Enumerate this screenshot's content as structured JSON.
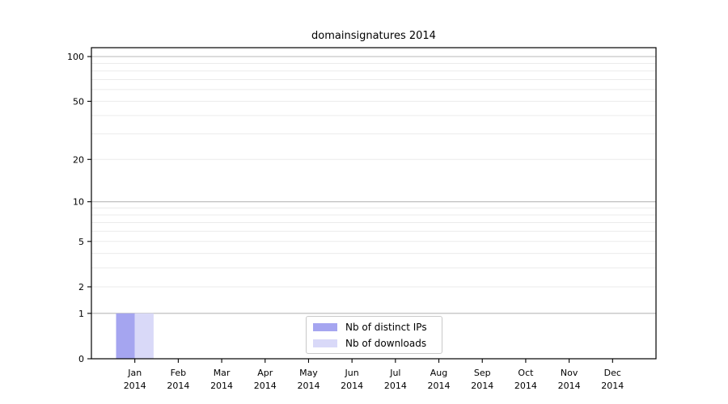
{
  "title": "domainsignatures 2014",
  "chart_data": {
    "type": "bar",
    "title": "domainsignatures 2014",
    "categories": [
      "Jan",
      "Feb",
      "Mar",
      "Apr",
      "May",
      "Jun",
      "Jul",
      "Aug",
      "Sep",
      "Oct",
      "Nov",
      "Dec"
    ],
    "category_sublabel": "2014",
    "series": [
      {
        "name": "Nb of distinct IPs",
        "color": "#a5a5f0",
        "values": [
          1,
          0,
          0,
          0,
          0,
          0,
          0,
          0,
          0,
          0,
          0,
          0
        ]
      },
      {
        "name": "Nb of downloads",
        "color": "#d9d9f8",
        "values": [
          1,
          0,
          0,
          0,
          0,
          0,
          0,
          0,
          0,
          0,
          0,
          0
        ]
      }
    ],
    "xlabel": "",
    "ylabel": "",
    "ylim": [
      0,
      100
    ],
    "yscale": "log1p",
    "yticks": [
      0,
      1,
      2,
      5,
      10,
      20,
      50,
      100
    ],
    "grid": {
      "on": true,
      "major_values": [
        1,
        10,
        100
      ],
      "minor_values": [
        2,
        3,
        4,
        5,
        6,
        7,
        8,
        9,
        20,
        30,
        40,
        50,
        60,
        70,
        80,
        90
      ],
      "major_color": "#b8b8b8",
      "minor_color": "#ebebeb"
    },
    "legend_position": "bottom-center"
  },
  "colors": {
    "background": "#ffffff",
    "spine": "#000000",
    "text": "#000000",
    "bar_distinct_ips": "#a5a5f0",
    "bar_downloads": "#d9d9f8",
    "legend_border": "#c9c9c9"
  }
}
